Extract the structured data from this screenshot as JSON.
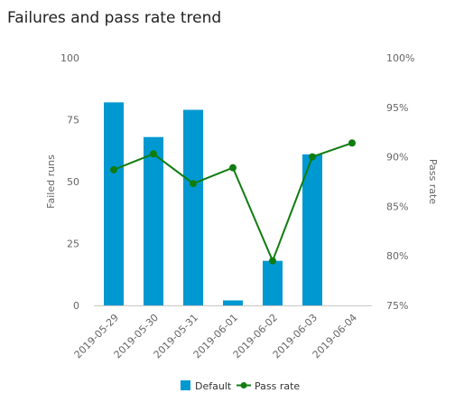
{
  "chart_data": {
    "type": "bar",
    "title": "Failures and pass rate trend",
    "categories": [
      "2019-05-29",
      "2019-05-30",
      "2019-05-31",
      "2019-06-01",
      "2019-06-02",
      "2019-06-03",
      "2019-06-04"
    ],
    "series": [
      {
        "name": "Default",
        "type": "bar",
        "axis": "left",
        "values": [
          82,
          68,
          79,
          2,
          18,
          61,
          0
        ],
        "color": "#0098d1"
      },
      {
        "name": "Pass rate",
        "type": "line",
        "axis": "right",
        "values": [
          88.7,
          90.3,
          87.3,
          88.9,
          79.5,
          90.0,
          91.4
        ],
        "color": "#107c10"
      }
    ],
    "ylabel": "Failed runs",
    "ylim": [
      0,
      100
    ],
    "yticks": [
      0,
      25,
      50,
      75,
      100
    ],
    "y2label": "Pass rate",
    "y2lim": [
      75,
      100
    ],
    "y2ticks": [
      "75%",
      "80%",
      "85%",
      "90%",
      "95%",
      "100%"
    ],
    "legend_position": "bottom-center",
    "grid": false
  }
}
